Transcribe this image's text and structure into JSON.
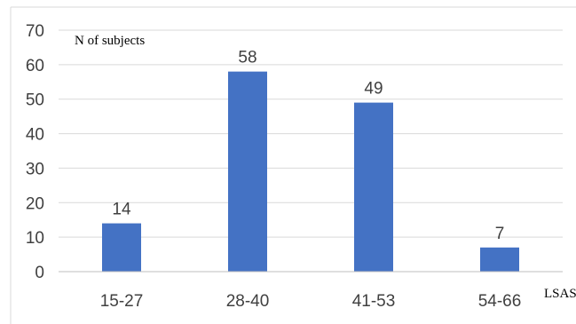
{
  "chart_data": {
    "type": "bar",
    "categories": [
      "15-27",
      "28-40",
      "41-53",
      "54-66"
    ],
    "values": [
      14,
      58,
      49,
      7
    ],
    "data_labels": [
      "14",
      "58",
      "49",
      "7"
    ],
    "title": "",
    "xlabel": "LSAS",
    "ylabel": "N of subjects",
    "ylim": [
      0,
      70
    ],
    "yticks": [
      "0",
      "10",
      "20",
      "30",
      "40",
      "50",
      "60",
      "70"
    ],
    "grid": true,
    "legend": "none",
    "bar_color": "#4472C4",
    "grid_color": "#d9d9d9",
    "axis_color": "#bfbfbf"
  }
}
